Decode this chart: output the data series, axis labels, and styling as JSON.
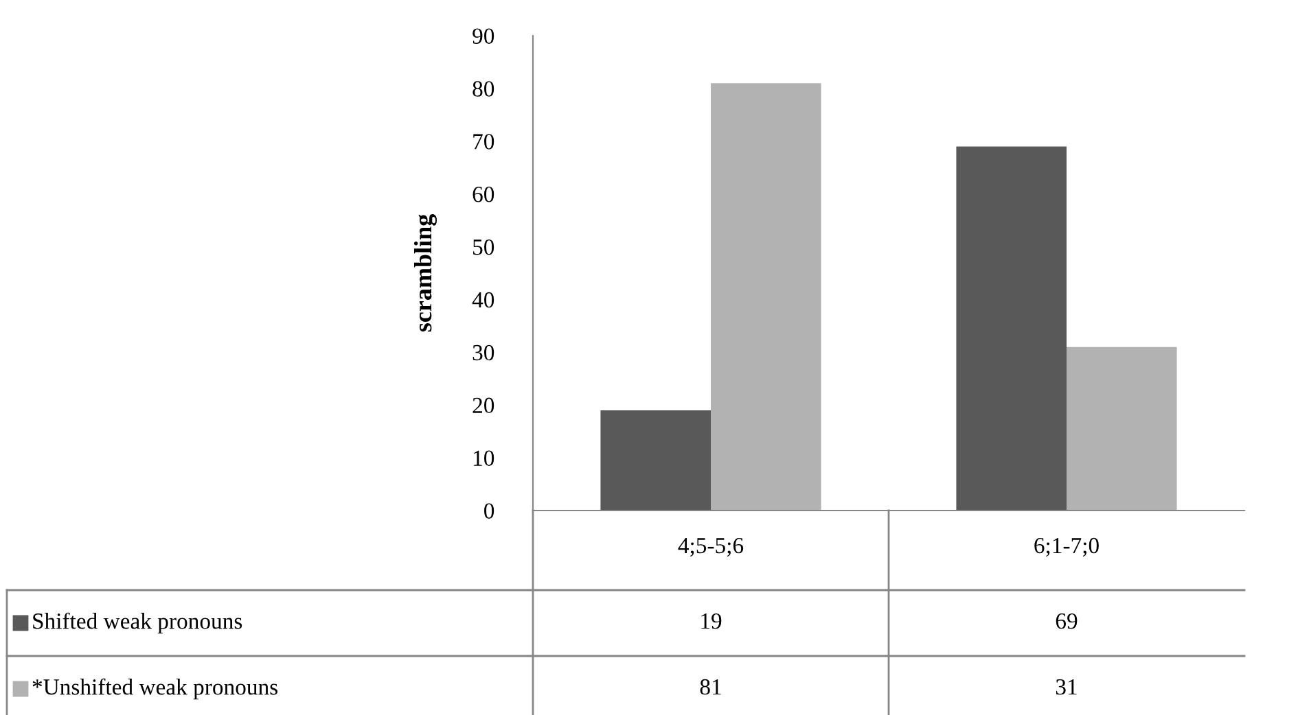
{
  "chart_data": {
    "type": "bar",
    "ylabel": "scrambling",
    "categories": [
      "4;5-5;6",
      "6;1-7;0"
    ],
    "series": [
      {
        "name": "Shifted weak pronouns",
        "color": "#595959",
        "values": [
          19,
          69
        ]
      },
      {
        "name": "*Unshifted weak pronouns",
        "color": "#b2b2b2",
        "values": [
          81,
          31
        ]
      }
    ],
    "ylim": [
      0,
      90
    ],
    "yticks": [
      0,
      10,
      20,
      30,
      40,
      50,
      60,
      70,
      80,
      90
    ],
    "grid": false,
    "legend": "bottom",
    "data_labels": true
  }
}
